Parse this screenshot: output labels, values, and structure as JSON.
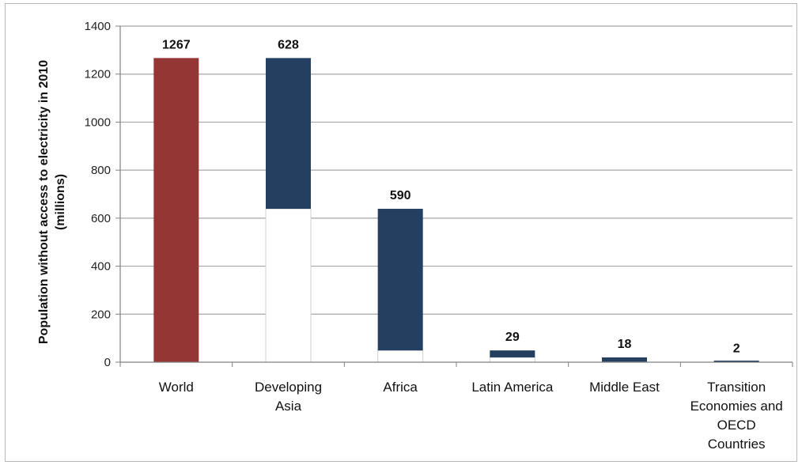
{
  "chart_data": {
    "type": "bar",
    "subtype": "waterfall",
    "title": "",
    "xlabel": "",
    "ylabel_lines": [
      "Population without access to electricity in 2010",
      "(millions)"
    ],
    "ylim": [
      0,
      1400
    ],
    "yticks": [
      0,
      200,
      400,
      600,
      800,
      1000,
      1200,
      1400
    ],
    "grid": true,
    "categories": [
      [
        "World"
      ],
      [
        "Developing",
        "Asia"
      ],
      [
        "Africa"
      ],
      [
        "Latin America"
      ],
      [
        "Middle East"
      ],
      [
        "Transition",
        "Economies and",
        "OECD",
        "Countries"
      ]
    ],
    "values": [
      1267,
      628,
      590,
      29,
      18,
      2
    ],
    "data_labels": [
      "1267",
      "628",
      "590",
      "29",
      "18",
      "2"
    ],
    "colors": {
      "total": "#943634",
      "component": "#243f60",
      "base": "#ffffff",
      "base_outline": "#d0d0d0",
      "grid": "#a6a6a6",
      "axis": "#808080"
    }
  }
}
